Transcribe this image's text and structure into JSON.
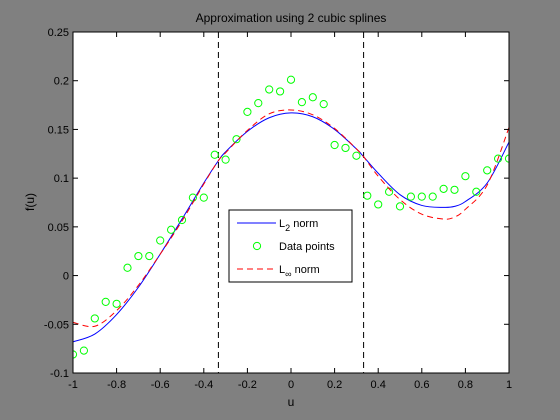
{
  "chart_data": {
    "type": "line",
    "title": "Approximation using 2 cubic splines",
    "xlabel": "u",
    "ylabel": "f(u)",
    "xlim": [
      -1,
      1
    ],
    "ylim": [
      -0.1,
      0.25
    ],
    "xticks": [
      "-1",
      "-0.8",
      "-0.6",
      "-0.4",
      "-0.2",
      "0",
      "0.2",
      "0.4",
      "0.6",
      "0.8",
      "1"
    ],
    "yticks": [
      "-0.1",
      "-0.05",
      "0",
      "0.05",
      "0.1",
      "0.15",
      "0.2",
      "0.25"
    ],
    "grid": false,
    "legend_position": "center",
    "knots": [
      -0.333,
      0.333
    ],
    "series": [
      {
        "name": "L2 norm",
        "legend_base": "L",
        "legend_sub": "2",
        "legend_rest": " norm",
        "style": "solid",
        "color": "#0000ff",
        "x": [
          -1,
          -0.9,
          -0.8,
          -0.7,
          -0.6,
          -0.5,
          -0.4,
          -0.333,
          -0.3,
          -0.2,
          -0.1,
          0,
          0.1,
          0.2,
          0.3,
          0.333,
          0.4,
          0.5,
          0.6,
          0.7,
          0.75,
          0.8,
          0.9,
          1
        ],
        "y": [
          -0.068,
          -0.06,
          -0.04,
          -0.012,
          0.022,
          0.058,
          0.095,
          0.118,
          0.127,
          0.148,
          0.162,
          0.167,
          0.163,
          0.15,
          0.13,
          0.122,
          0.105,
          0.083,
          0.072,
          0.07,
          0.071,
          0.076,
          0.095,
          0.137
        ]
      },
      {
        "name": "Data points",
        "legend_base": "Data points",
        "legend_sub": "",
        "legend_rest": "",
        "style": "marker",
        "color": "#00ff00",
        "x": [
          -1,
          -0.95,
          -0.9,
          -0.85,
          -0.8,
          -0.75,
          -0.7,
          -0.65,
          -0.6,
          -0.55,
          -0.5,
          -0.45,
          -0.4,
          -0.35,
          -0.3,
          -0.25,
          -0.2,
          -0.15,
          -0.1,
          -0.05,
          0,
          0.05,
          0.1,
          0.15,
          0.2,
          0.25,
          0.3,
          0.35,
          0.4,
          0.45,
          0.5,
          0.55,
          0.6,
          0.65,
          0.7,
          0.75,
          0.8,
          0.85,
          0.9,
          0.95,
          1
        ],
        "y": [
          -0.081,
          -0.077,
          -0.044,
          -0.027,
          -0.029,
          0.008,
          0.02,
          0.02,
          0.036,
          0.047,
          0.057,
          0.08,
          0.08,
          0.124,
          0.119,
          0.14,
          0.168,
          0.177,
          0.191,
          0.189,
          0.201,
          0.178,
          0.183,
          0.176,
          0.134,
          0.131,
          0.123,
          0.082,
          0.073,
          0.086,
          0.071,
          0.081,
          0.081,
          0.081,
          0.089,
          0.088,
          0.102,
          0.086,
          0.108,
          0.12,
          0.12
        ]
      },
      {
        "name": "L∞ norm",
        "legend_base": "L",
        "legend_sub": "∞",
        "legend_rest": " norm",
        "style": "dashed",
        "color": "#ff0000",
        "x": [
          -1,
          -0.9,
          -0.8,
          -0.7,
          -0.6,
          -0.5,
          -0.4,
          -0.333,
          -0.3,
          -0.2,
          -0.1,
          0,
          0.1,
          0.2,
          0.3,
          0.333,
          0.4,
          0.5,
          0.6,
          0.7,
          0.75,
          0.8,
          0.9,
          1
        ],
        "y": [
          -0.048,
          -0.052,
          -0.036,
          -0.01,
          0.022,
          0.056,
          0.094,
          0.118,
          0.126,
          0.149,
          0.166,
          0.17,
          0.165,
          0.151,
          0.13,
          0.122,
          0.102,
          0.078,
          0.063,
          0.058,
          0.06,
          0.068,
          0.093,
          0.152
        ]
      }
    ]
  }
}
